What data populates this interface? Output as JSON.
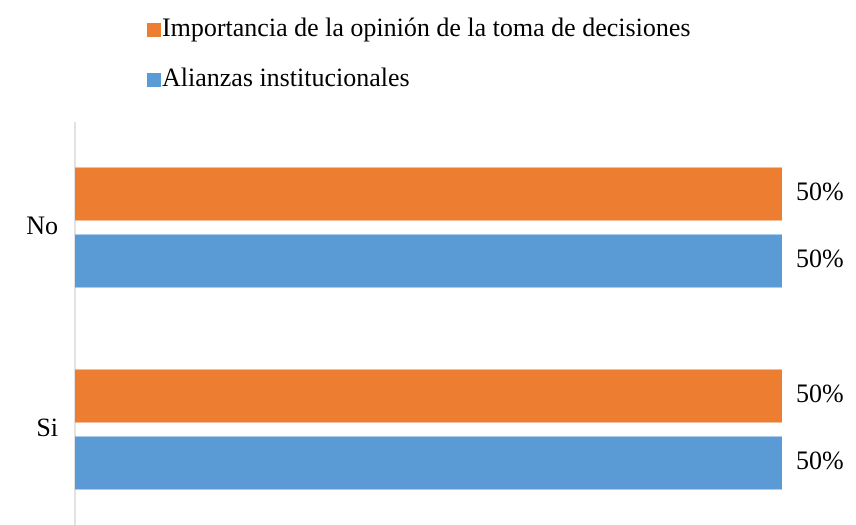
{
  "chart_data": {
    "type": "hbar",
    "categories": [
      "No",
      "Si"
    ],
    "series": [
      {
        "name": "Importancia de la opinión de la toma de decisiones",
        "color": "#ed7d31",
        "values": [
          50,
          50
        ],
        "value_labels": [
          "50%",
          "50%"
        ]
      },
      {
        "name": "Alianzas institucionales",
        "color": "#5b9bd5",
        "values": [
          50,
          50
        ],
        "value_labels": [
          "50%",
          "50%"
        ]
      }
    ],
    "xlim": [
      0,
      50
    ]
  }
}
